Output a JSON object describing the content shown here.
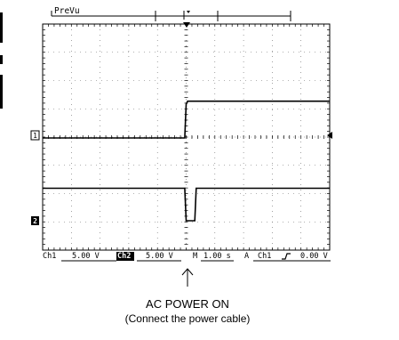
{
  "header": {
    "mode_label": "PreVu"
  },
  "markers": {
    "ch1": "1",
    "ch2": "2"
  },
  "status": {
    "ch1_name": "Ch1",
    "ch1_scale": "5.00 V",
    "ch2_name": "Ch2",
    "ch2_scale": "5.00 V",
    "timebase_label": "M",
    "timebase_value": "1.00 s",
    "trigger_mode": "A",
    "trigger_source": "Ch1",
    "trigger_slope_icon": "rising-edge-icon",
    "trigger_level": "0.00 V"
  },
  "annotation": {
    "arrow_icon": "up-arrow-icon",
    "title": "AC POWER ON",
    "subtitle": "(Connect the power cable)"
  },
  "chart_data": {
    "type": "line",
    "title": "",
    "xlabel": "",
    "ylabel": "",
    "divisions": {
      "x": 10,
      "y": 8
    },
    "series": [
      {
        "channel": "Ch1",
        "units": "divisions",
        "x": [
          0,
          4.95,
          5.0,
          5.05,
          10
        ],
        "y": [
          0,
          0,
          1.2,
          1.3,
          1.3
        ]
      },
      {
        "channel": "Ch2",
        "units": "divisions",
        "x": [
          0,
          4.95,
          5.0,
          5.05,
          5.3,
          5.35,
          10
        ],
        "y": [
          1.15,
          1.15,
          0,
          0,
          0,
          1.15,
          1.15
        ]
      }
    ]
  }
}
